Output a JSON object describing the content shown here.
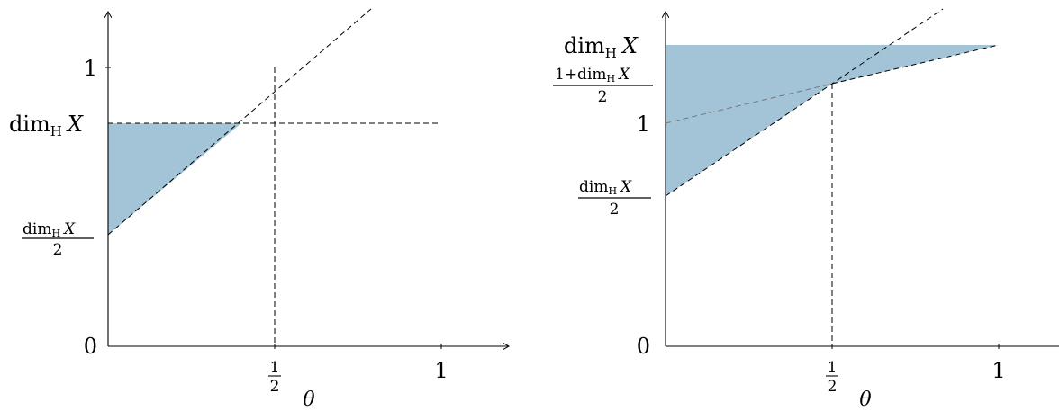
{
  "colors": {
    "fill": "#a3c3d7",
    "axis": "#000000",
    "dashed": "#000000",
    "dashed_light": "#777777"
  },
  "left_plot": {
    "y_tick_zero": "0",
    "y_tick_one": "1",
    "y_label_dim_main": "dim",
    "y_label_dim_sub": "H",
    "y_label_dim_var": "X",
    "y_label_half_main": "dim",
    "y_label_half_sub": "H",
    "y_label_half_var": "X",
    "y_label_half_den": "2",
    "x_tick_half_num": "1",
    "x_tick_half_den": "2",
    "x_tick_one": "1",
    "x_label": "θ"
  },
  "right_plot": {
    "y_tick_zero": "0",
    "y_tick_one": "1",
    "y_label_dim_main": "dim",
    "y_label_dim_sub": "H",
    "y_label_dim_var": "X",
    "y_label_mid_num_a": "1+dim",
    "y_label_mid_num_sub": "H",
    "y_label_mid_num_var": "X",
    "y_label_mid_den": "2",
    "y_label_half_main": "dim",
    "y_label_half_sub": "H",
    "y_label_half_var": "X",
    "y_label_half_den": "2",
    "x_tick_half_num": "1",
    "x_tick_half_den": "2",
    "x_tick_one": "1",
    "x_label": "θ"
  }
}
